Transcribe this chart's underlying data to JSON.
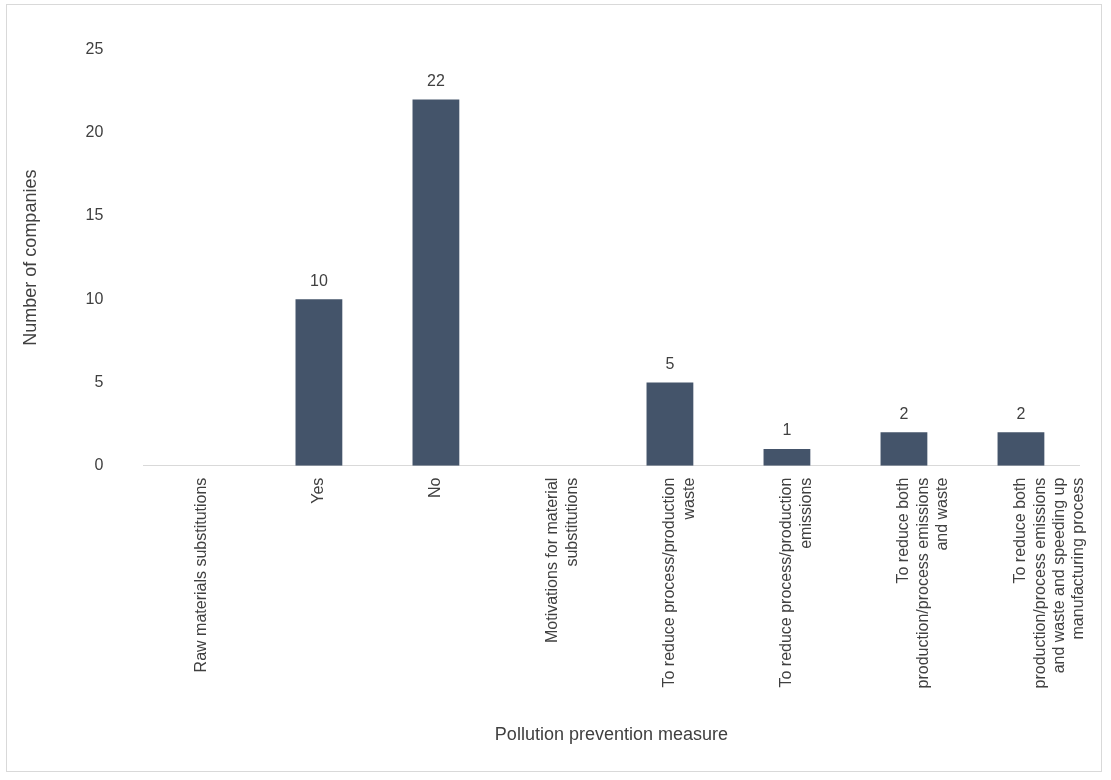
{
  "chart_data": {
    "type": "bar",
    "xlabel": "Pollution prevention measure",
    "ylabel": "Number of companies",
    "categories": [
      "Raw materials substitutions",
      "Yes",
      "No",
      "Motivations for material substitutions",
      "To reduce process/production waste",
      "To reduce process/production emissions",
      "To reduce both production/process emissions and waste",
      "To reduce both production/process emissions and waste and speeding up manufacturing process"
    ],
    "values": [
      null,
      10,
      22,
      null,
      5,
      1,
      2,
      2
    ],
    "color": "#44546a",
    "ylim": [
      0,
      25
    ],
    "yticks": [
      0,
      5,
      10,
      15,
      20,
      25
    ],
    "grid": false,
    "legend": false,
    "data_labels": true
  }
}
